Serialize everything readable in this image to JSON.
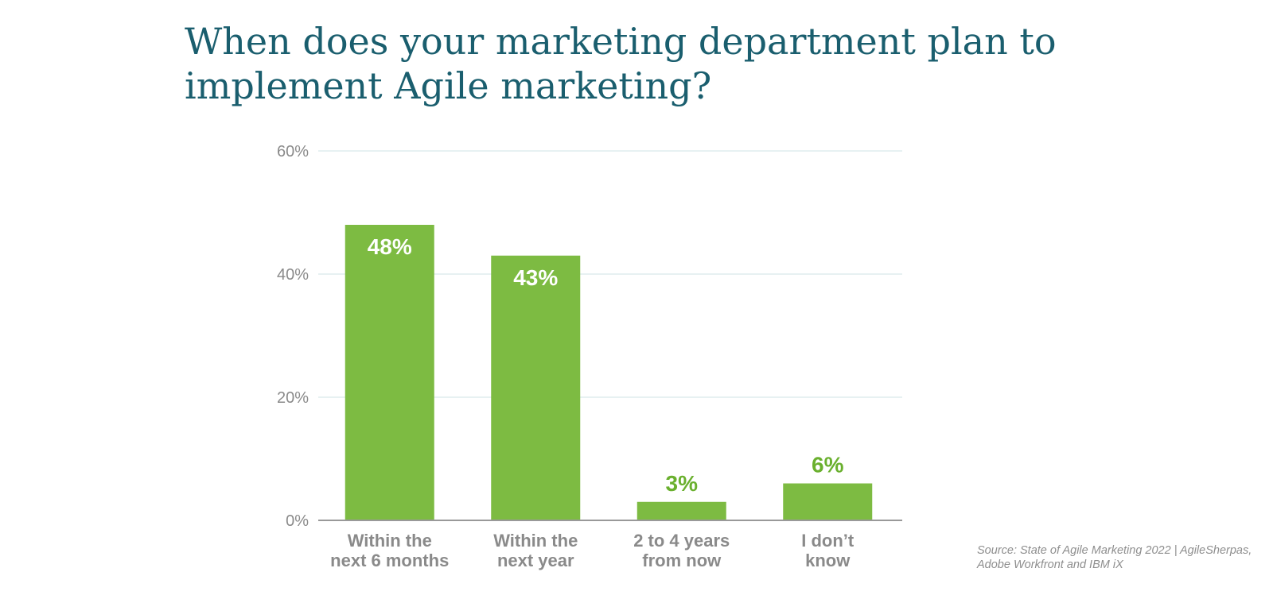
{
  "title_lines": [
    "When does your marketing department plan to",
    "implement Agile marketing?"
  ],
  "source_lines": [
    "Source: State of Agile Marketing 2022 | AgileSherpas,",
    "Adobe Workfront and IBM iX"
  ],
  "colors": {
    "bar": "#7dbb42",
    "label_inside": "#ffffff",
    "label_outside": "#6ab02e",
    "grid": "#cfe3e6",
    "axis": "#999999",
    "tick_text": "#8a8a8a",
    "category_text": "#8a8a8a",
    "title": "#1a5e6e"
  },
  "chart_data": {
    "type": "bar",
    "categories": [
      [
        "Within the",
        "next 6 months"
      ],
      [
        "Within the",
        "next year"
      ],
      [
        "2 to 4 years",
        "from now"
      ],
      [
        "I don’t",
        "know"
      ]
    ],
    "values": [
      48,
      43,
      3,
      6
    ],
    "value_labels": [
      "48%",
      "43%",
      "3%",
      "6%"
    ],
    "y_ticks": [
      0,
      20,
      40,
      60
    ],
    "y_tick_labels": [
      "0%",
      "20%",
      "40%",
      "60%"
    ],
    "ylim": [
      0,
      60
    ],
    "grid": true,
    "legend": "none"
  }
}
